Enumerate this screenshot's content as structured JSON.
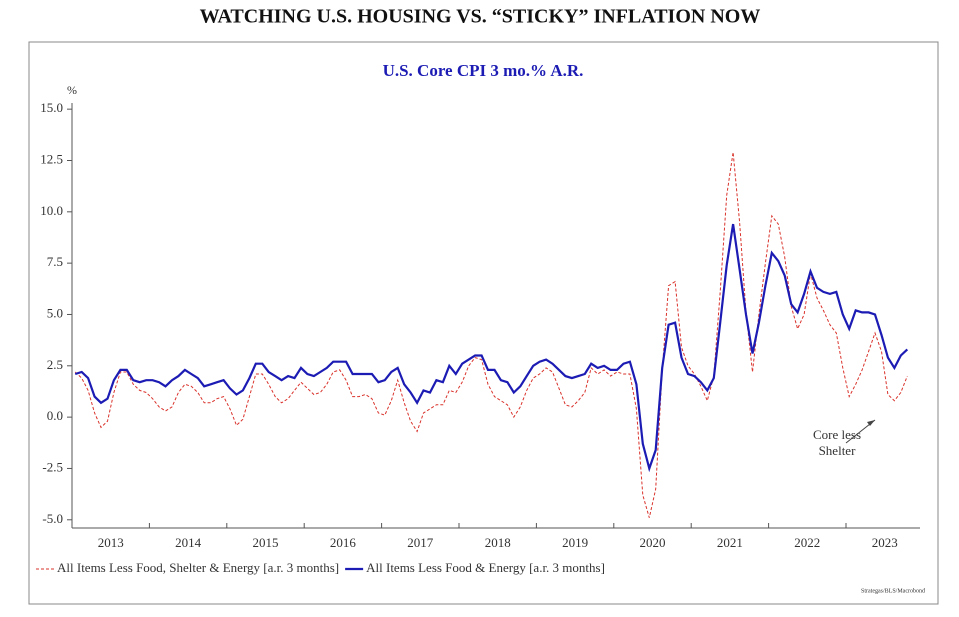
{
  "chart_data": {
    "type": "line",
    "page_title": "WATCHING U.S. HOUSING VS. “STICKY” INFLATION NOW",
    "title": "U.S. Core CPI 3 mo.% A.R.",
    "y_label": "%",
    "annotation_lines": [
      "Core less",
      "Shelter"
    ],
    "source": "Strategas/BLS/Macrobond",
    "categories": [
      null,
      null,
      null,
      null,
      null,
      null,
      "2013",
      null,
      null,
      null,
      null,
      null,
      null,
      null,
      null,
      null,
      null,
      null,
      "2014",
      null,
      null,
      null,
      null,
      null,
      null,
      null,
      null,
      null,
      null,
      null,
      "2015",
      null,
      null,
      null,
      null,
      null,
      null,
      null,
      null,
      null,
      null,
      null,
      "2016",
      null,
      null,
      null,
      null,
      null,
      null,
      null,
      null,
      null,
      null,
      null,
      "2017",
      null,
      null,
      null,
      null,
      null,
      null,
      null,
      null,
      null,
      null,
      null,
      "2018",
      null,
      null,
      null,
      null,
      null,
      null,
      null,
      null,
      null,
      null,
      null,
      "2019",
      null,
      null,
      null,
      null,
      null,
      null,
      null,
      null,
      null,
      null,
      null,
      "2020",
      null,
      null,
      null,
      null,
      null,
      null,
      null,
      null,
      null,
      null,
      null,
      "2021",
      null,
      null,
      null,
      null,
      null,
      null,
      null,
      null,
      null,
      null,
      null,
      "2022",
      null,
      null,
      null,
      null,
      null,
      null,
      null,
      null,
      null,
      null,
      null,
      "2023",
      null,
      null,
      null
    ],
    "series": [
      {
        "name": "All Items Less Food, Shelter & Energy [a.r. 3 months]",
        "color": "#d9322b",
        "dash": true,
        "values": [
          2.2,
          1.9,
          1.3,
          0.2,
          -0.5,
          -0.2,
          1.2,
          2.2,
          2.2,
          1.6,
          1.3,
          1.2,
          0.9,
          0.5,
          0.3,
          0.5,
          1.2,
          1.6,
          1.5,
          1.2,
          0.7,
          0.7,
          0.9,
          1.0,
          0.4,
          -0.4,
          -0.1,
          1.0,
          2.1,
          2.1,
          1.6,
          1.0,
          0.7,
          0.9,
          1.3,
          1.7,
          1.4,
          1.1,
          1.2,
          1.6,
          2.2,
          2.3,
          1.8,
          1.0,
          1.0,
          1.1,
          0.9,
          0.2,
          0.1,
          0.8,
          1.8,
          0.7,
          -0.2,
          -0.7,
          0.2,
          0.4,
          0.6,
          0.6,
          1.3,
          1.2,
          1.7,
          2.5,
          2.9,
          2.8,
          1.6,
          1.0,
          0.8,
          0.6,
          0.0,
          0.5,
          1.3,
          1.9,
          2.1,
          2.4,
          2.2,
          1.4,
          0.6,
          0.5,
          0.8,
          1.2,
          2.4,
          2.1,
          2.3,
          2.0,
          2.2,
          2.1,
          2.1,
          0.4,
          -3.8,
          -4.9,
          -3.5,
          2.3,
          6.4,
          6.6,
          3.4,
          2.5,
          2.1,
          1.5,
          0.8,
          2.0,
          6.1,
          10.8,
          12.9,
          9.5,
          5.1,
          2.2,
          5.0,
          7.5,
          9.8,
          9.4,
          7.8,
          5.4,
          4.3,
          5.0,
          7.0,
          5.8,
          5.2,
          4.5,
          4.1,
          2.4,
          1.0,
          1.6,
          2.3,
          3.2,
          4.1,
          3.2,
          1.1,
          0.8,
          1.2,
          2.0
        ]
      },
      {
        "name": "All Items Less Food & Energy [a.r. 3 months]",
        "color": "#1c1cb4",
        "dash": false,
        "values": [
          2.1,
          2.2,
          1.9,
          1.0,
          0.7,
          0.9,
          1.8,
          2.3,
          2.3,
          1.8,
          1.7,
          1.8,
          1.8,
          1.7,
          1.5,
          1.8,
          2.0,
          2.3,
          2.1,
          1.9,
          1.5,
          1.6,
          1.7,
          1.8,
          1.4,
          1.1,
          1.3,
          1.9,
          2.6,
          2.6,
          2.2,
          2.0,
          1.8,
          2.0,
          1.9,
          2.4,
          2.1,
          2.0,
          2.2,
          2.4,
          2.7,
          2.7,
          2.7,
          2.1,
          2.1,
          2.1,
          2.1,
          1.7,
          1.8,
          2.2,
          2.4,
          1.6,
          1.2,
          0.7,
          1.3,
          1.2,
          1.8,
          1.7,
          2.5,
          2.1,
          2.6,
          2.8,
          3.0,
          3.0,
          2.3,
          2.3,
          1.8,
          1.7,
          1.2,
          1.5,
          2.0,
          2.5,
          2.7,
          2.8,
          2.6,
          2.3,
          2.0,
          1.9,
          2.0,
          2.1,
          2.6,
          2.4,
          2.5,
          2.3,
          2.3,
          2.6,
          2.7,
          1.6,
          -1.3,
          -2.5,
          -1.6,
          2.4,
          4.5,
          4.6,
          2.9,
          2.1,
          2.0,
          1.7,
          1.3,
          1.9,
          4.6,
          7.4,
          9.4,
          7.2,
          5.0,
          3.1,
          4.6,
          6.4,
          8.0,
          7.6,
          6.9,
          5.5,
          5.1,
          6.0,
          7.1,
          6.3,
          6.1,
          6.0,
          6.1,
          5.0,
          4.3,
          5.2,
          5.1,
          5.1,
          5.0,
          4.0,
          2.9,
          2.4,
          3.0,
          3.3
        ]
      }
    ],
    "ylim": [
      -5.4,
      15.3
    ],
    "yticks": [
      {
        "value": -5,
        "label": "-5.0"
      },
      -2.5,
      {
        "value": 0,
        "label": "0.0"
      },
      2.5,
      {
        "value": 5,
        "label": "5.0"
      },
      7.5,
      {
        "value": 10,
        "label": "10.0"
      },
      12.5,
      {
        "value": 15,
        "label": "15.0"
      }
    ]
  }
}
